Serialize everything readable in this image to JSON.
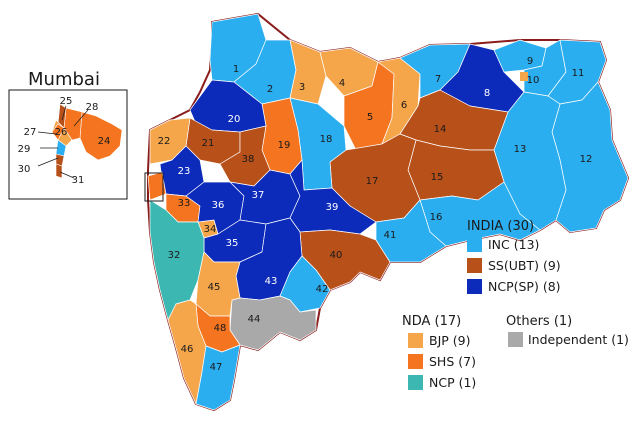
{
  "inset": {
    "title": "Mumbai"
  },
  "colors": {
    "INC": "#2baef0",
    "SSUBT": "#b8501a",
    "NCPSP": "#0d2bbb",
    "BJP": "#f5a64a",
    "SHS": "#f5741f",
    "NCP": "#3cb7b2",
    "IND": "#a9a9a9",
    "border": "#8a1c1c"
  },
  "legend": {
    "india": {
      "title": "INDIA (30)",
      "items": [
        {
          "label": "INC (13)",
          "color": "#2baef0"
        },
        {
          "label": "SS(UBT) (9)",
          "color": "#b8501a"
        },
        {
          "label": "NCP(SP) (8)",
          "color": "#0d2bbb"
        }
      ]
    },
    "nda": {
      "title": "NDA (17)",
      "items": [
        {
          "label": "BJP (9)",
          "color": "#f5a64a"
        },
        {
          "label": "SHS (7)",
          "color": "#f5741f"
        },
        {
          "label": "NCP (1)",
          "color": "#3cb7b2"
        }
      ]
    },
    "others": {
      "title": "Others (1)",
      "items": [
        {
          "label": "Independent (1)",
          "color": "#a9a9a9"
        }
      ]
    }
  },
  "constituency_labels": {
    "1": "1",
    "2": "2",
    "3": "3",
    "4": "4",
    "5": "5",
    "6": "6",
    "7": "7",
    "8": "8",
    "9": "9",
    "10": "10",
    "11": "11",
    "12": "12",
    "13": "13",
    "14": "14",
    "15": "15",
    "16": "16",
    "17": "17",
    "18": "18",
    "19": "19",
    "20": "20",
    "21": "21",
    "22": "22",
    "23": "23",
    "24": "24",
    "25": "25",
    "26": "26",
    "27": "27",
    "28": "28",
    "29": "29",
    "30": "30",
    "31": "31",
    "32": "32",
    "33": "33",
    "34": "34",
    "35": "35",
    "36": "36",
    "37": "37",
    "38": "38",
    "39": "39",
    "40": "40",
    "41": "41",
    "42": "42",
    "43": "43",
    "44": "44",
    "45": "45",
    "46": "46",
    "47": "47",
    "48": "48"
  }
}
